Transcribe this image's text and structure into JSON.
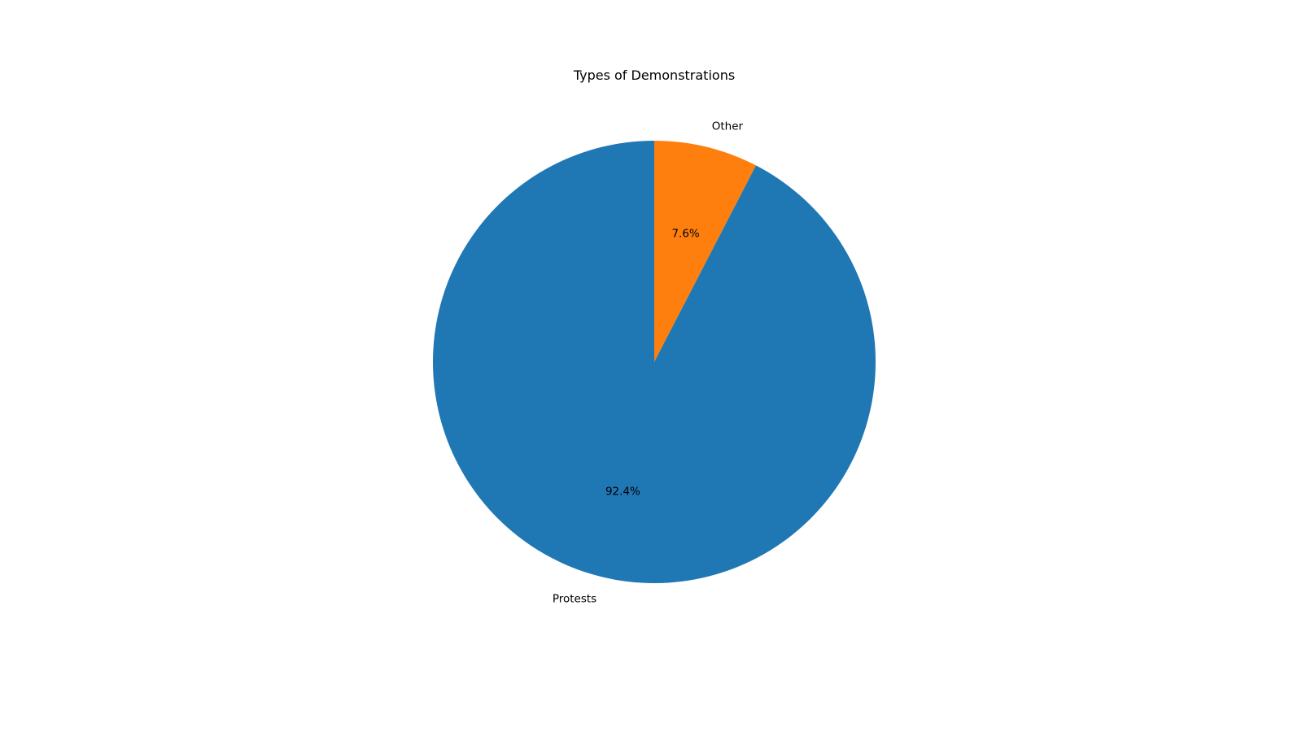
{
  "chart_data": {
    "type": "pie",
    "title": "Types of Demonstrations",
    "slices": [
      {
        "label": "Other",
        "value": 7.6,
        "pct_label": "7.6%",
        "color": "#ff7f0e"
      },
      {
        "label": "Protests",
        "value": 92.4,
        "pct_label": "92.4%",
        "color": "#1f77b4"
      }
    ],
    "start_angle_deg": 90,
    "direction": "clockwise",
    "legend": "none"
  }
}
